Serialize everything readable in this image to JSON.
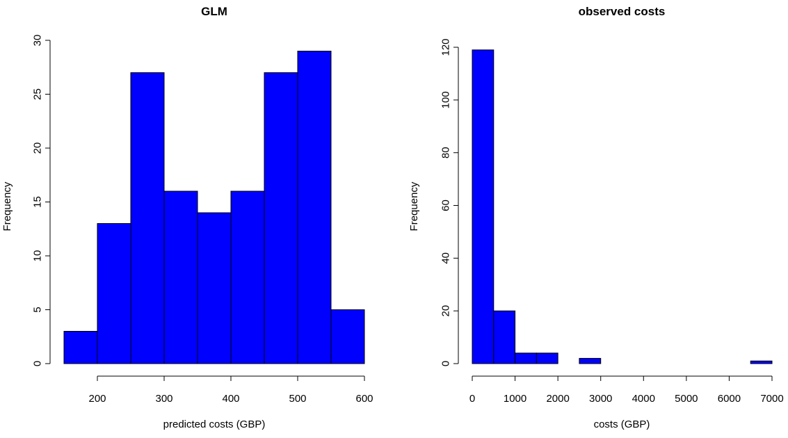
{
  "chart_data": [
    {
      "type": "bar",
      "title": "GLM",
      "xlabel": "predicted costs (GBP)",
      "ylabel": "Frequency",
      "bin_edges": [
        150,
        200,
        250,
        300,
        350,
        400,
        450,
        500,
        550,
        600
      ],
      "values": [
        3,
        13,
        27,
        16,
        14,
        16,
        27,
        29,
        5
      ],
      "x_ticks": [
        200,
        300,
        400,
        500,
        600
      ],
      "y_ticks": [
        0,
        5,
        10,
        15,
        20,
        25,
        30
      ],
      "xlim": [
        150,
        600
      ],
      "ylim": [
        0,
        30
      ],
      "bar_color": "#0000ff",
      "grid": false
    },
    {
      "type": "bar",
      "title": "observed costs",
      "xlabel": "costs (GBP)",
      "ylabel": "Frequency",
      "bin_edges": [
        0,
        500,
        1000,
        1500,
        2000,
        2500,
        3000,
        3500,
        4000,
        4500,
        5000,
        5500,
        6000,
        6500,
        7000
      ],
      "values": [
        119,
        20,
        4,
        4,
        0,
        2,
        0,
        0,
        0,
        0,
        0,
        0,
        0,
        1
      ],
      "x_ticks": [
        0,
        1000,
        2000,
        3000,
        4000,
        5000,
        6000,
        7000
      ],
      "y_ticks": [
        0,
        20,
        40,
        60,
        80,
        100,
        120
      ],
      "xlim": [
        0,
        7000
      ],
      "ylim": [
        0,
        120
      ],
      "bar_color": "#0000ff",
      "grid": false
    }
  ]
}
